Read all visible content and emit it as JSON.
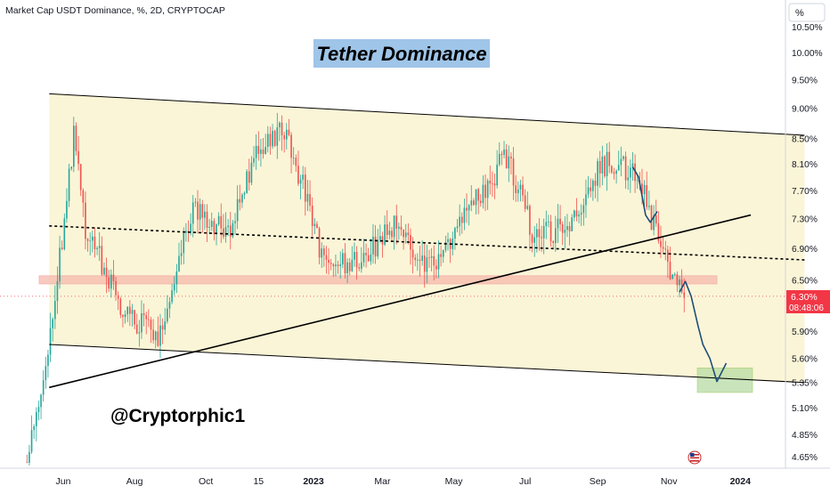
{
  "header": {
    "title": "Market Cap USDT Dominance, %, 2D, CRYPTOCAP",
    "scale_button": "%"
  },
  "annotations": {
    "title_box": "Tether Dominance",
    "author": "@Cryptorphic1"
  },
  "price_tag": {
    "value": "6.30%",
    "countdown": "08:48:06"
  },
  "colors": {
    "up": "#26a69a",
    "down": "#ef5350",
    "channel_fill": "#fbf4d3",
    "support_zone": "#f7b9ad",
    "target_zone": "#b7dca3",
    "title_box": "#9fc5e8",
    "projection": "#1f4e79",
    "price_tag": "#f23645"
  },
  "chart_data": {
    "type": "candlestick",
    "title": "Market Cap USDT Dominance, %, 2D, CRYPTOCAP",
    "xlabel": "",
    "ylabel": "%",
    "x_ticks": [
      "Jun",
      "Aug",
      "Oct",
      "15",
      "2023",
      "Mar",
      "May",
      "Jul",
      "Sep",
      "Nov",
      "2024"
    ],
    "y_ticks": [
      "10.50%",
      "10.00%",
      "9.50%",
      "9.00%",
      "8.50%",
      "8.10%",
      "7.70%",
      "7.30%",
      "6.90%",
      "6.50%",
      "5.90%",
      "5.60%",
      "5.35%",
      "5.10%",
      "4.85%",
      "4.65%"
    ],
    "y_scale": "log",
    "ylim": [
      4.6,
      10.7
    ],
    "last_value": 6.3,
    "approx_close_path": [
      {
        "t": "2022-05",
        "v": 4.6
      },
      {
        "t": "2022-05-15",
        "v": 5.3
      },
      {
        "t": "2022-05-25",
        "v": 6.3
      },
      {
        "t": "2022-06-10",
        "v": 8.5
      },
      {
        "t": "2022-06-20",
        "v": 7.2
      },
      {
        "t": "2022-07-20",
        "v": 6.2
      },
      {
        "t": "2022-08-20",
        "v": 5.8
      },
      {
        "t": "2022-09-20",
        "v": 7.5
      },
      {
        "t": "2022-10-20",
        "v": 7.1
      },
      {
        "t": "2022-11-15",
        "v": 8.4
      },
      {
        "t": "2022-12-10",
        "v": 8.6
      },
      {
        "t": "2023-01-10",
        "v": 6.7
      },
      {
        "t": "2023-02-10",
        "v": 6.7
      },
      {
        "t": "2023-03-10",
        "v": 7.2
      },
      {
        "t": "2023-04-15",
        "v": 6.6
      },
      {
        "t": "2023-05-20",
        "v": 7.6
      },
      {
        "t": "2023-06-15",
        "v": 8.2
      },
      {
        "t": "2023-07-10",
        "v": 7.0
      },
      {
        "t": "2023-08-10",
        "v": 7.3
      },
      {
        "t": "2023-09-05",
        "v": 8.1
      },
      {
        "t": "2023-10-05",
        "v": 8.0
      },
      {
        "t": "2023-10-25",
        "v": 6.9
      },
      {
        "t": "2023-11-15",
        "v": 6.3
      }
    ],
    "overlays": [
      {
        "name": "channel_top",
        "from": {
          "t": "2022-05-20",
          "v": 9.25
        },
        "to": {
          "t": "2024-02-25",
          "v": 8.55
        }
      },
      {
        "name": "channel_bottom",
        "from": {
          "t": "2022-05-20",
          "v": 5.75
        },
        "to": {
          "t": "2024-02-25",
          "v": 5.35
        }
      },
      {
        "name": "dotted_trend",
        "from": {
          "t": "2022-05-20",
          "v": 7.2
        },
        "to": {
          "t": "2024-02-25",
          "v": 6.75
        }
      },
      {
        "name": "rising_support",
        "from": {
          "t": "2022-05-20",
          "v": 5.3
        },
        "to": {
          "t": "2024-01-10",
          "v": 7.35
        }
      },
      {
        "name": "support_zone",
        "range": [
          6.45,
          6.55
        ]
      },
      {
        "name": "target_zone",
        "range": [
          5.25,
          5.5
        ]
      }
    ]
  }
}
